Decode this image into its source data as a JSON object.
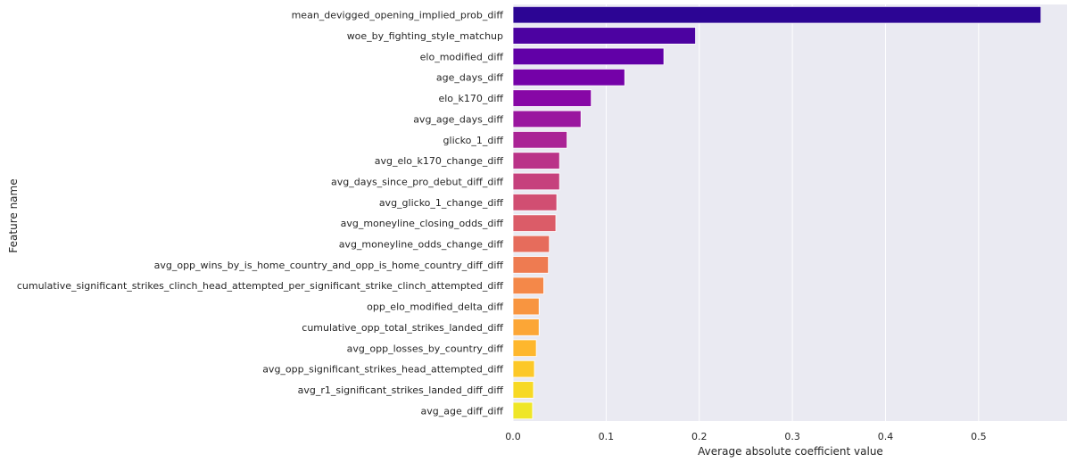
{
  "chart_data": {
    "type": "bar",
    "orientation": "horizontal",
    "xlabel": "Average absolute coefficient value",
    "ylabel": "Feature name",
    "xlim": [
      0,
      0.595
    ],
    "xticks": [
      0.0,
      0.1,
      0.2,
      0.3,
      0.4,
      0.5
    ],
    "xtick_labels": [
      "0.0",
      "0.1",
      "0.2",
      "0.3",
      "0.4",
      "0.5"
    ],
    "grid": true,
    "colormap": "plasma",
    "categories": [
      "mean_devigged_opening_implied_prob_diff",
      "woe_by_fighting_style_matchup",
      "elo_modified_diff",
      "age_days_diff",
      "elo_k170_diff",
      "avg_age_days_diff",
      "glicko_1_diff",
      "avg_elo_k170_change_diff",
      "avg_days_since_pro_debut_diff_diff",
      "avg_glicko_1_change_diff",
      "avg_moneyline_closing_odds_diff",
      "avg_moneyline_odds_change_diff",
      "avg_opp_wins_by_is_home_country_and_opp_is_home_country_diff_diff",
      "cumulative_significant_strikes_clinch_head_attempted_per_significant_strike_clinch_attempted_diff",
      "opp_elo_modified_delta_diff",
      "cumulative_opp_total_strikes_landed_diff",
      "avg_opp_losses_by_country_diff",
      "avg_opp_significant_strikes_head_attempted_diff",
      "avg_r1_significant_strikes_landed_diff_diff",
      "avg_age_diff_diff"
    ],
    "values": [
      0.567,
      0.196,
      0.162,
      0.12,
      0.084,
      0.073,
      0.058,
      0.05,
      0.05,
      0.047,
      0.046,
      0.039,
      0.038,
      0.033,
      0.028,
      0.028,
      0.025,
      0.023,
      0.022,
      0.021
    ],
    "colors": [
      "#2c0594",
      "#4c02a1",
      "#6100a7",
      "#7401a8",
      "#8707a6",
      "#9a169f",
      "#aa2395",
      "#ba3388",
      "#c6417d",
      "#d14e72",
      "#db5c68",
      "#e66c5c",
      "#ee7b51",
      "#f48849",
      "#f89540",
      "#fca636",
      "#feb72d",
      "#fcc828",
      "#f7d924",
      "#efe627"
    ]
  }
}
